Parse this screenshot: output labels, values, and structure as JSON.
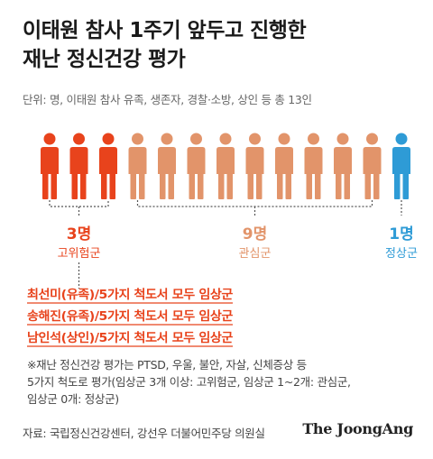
{
  "title_lines": [
    "이태원 참사 1주기 앞두고 진행한",
    "재난 정신건강 평가"
  ],
  "unit_note": "단위: 명, 이태원 참사 유족, 생존자, 경찰·소방, 상인 등 총 13인",
  "colors": {
    "high_risk": "#e8431c",
    "interest": "#e2946a",
    "normal": "#2e9bd6",
    "bracket": "#555555"
  },
  "chart_data": {
    "type": "pictogram",
    "title": "이태원 참사 1주기 앞두고 진행한 재난 정신건강 평가",
    "total": 13,
    "groups": [
      {
        "name": "고위험군",
        "value": 3,
        "value_label": "3명",
        "color": "#e8431c"
      },
      {
        "name": "관심군",
        "value": 9,
        "value_label": "9명",
        "color": "#e2946a"
      },
      {
        "name": "정상군",
        "value": 1,
        "value_label": "1명",
        "color": "#2e9bd6"
      }
    ],
    "annotations": [
      {
        "name": "최선미(유족)",
        "text": "/5가지 척도서 모두 임상군"
      },
      {
        "name": "송해진(유족)",
        "text": "/5가지 척도서 모두 임상군"
      },
      {
        "name": "남인석(상인)",
        "text": "/5가지 척도서 모두 임상군"
      }
    ]
  },
  "notes": [
    "※재난 정신건강 평가는 PTSD, 우울, 불안, 자살, 신체증상 등",
    "5가지 척도로 평가(임상군 3개 이상: 고위험군, 임상군 1~2개: 관심군,",
    "임상군 0개: 정상군)"
  ],
  "source": "자료: 국립정신건강센터, 강선우 더불어민주당 의원실",
  "brand": "The JoongAng"
}
